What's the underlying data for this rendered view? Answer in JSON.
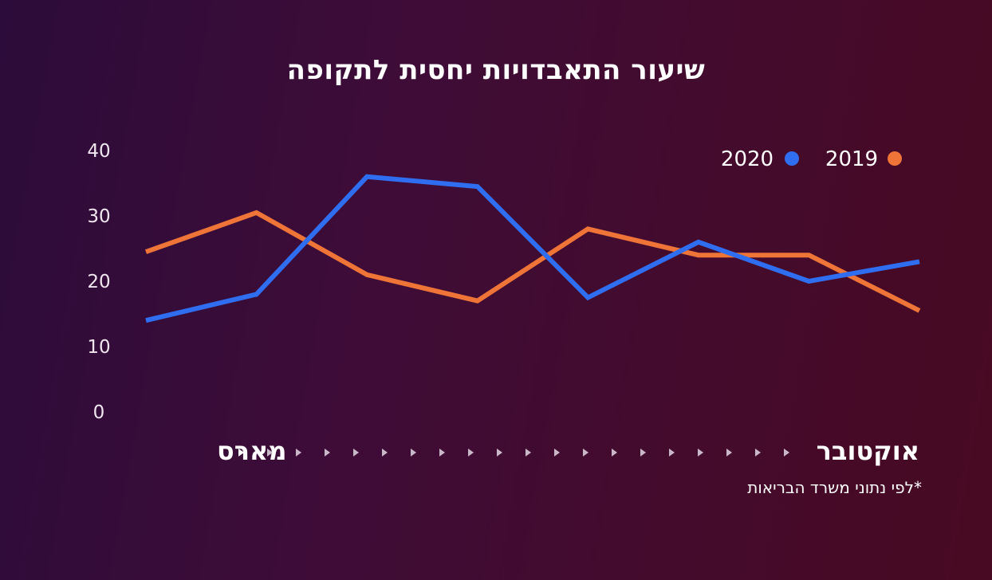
{
  "title": "שיעור התאבדויות יחסית לתקופה",
  "footnote": "*לפי נתוני משרד הבריאות",
  "chart_data": {
    "type": "line",
    "title": "שיעור התאבדויות יחסית לתקופה",
    "yticks": [
      0,
      10,
      20,
      30,
      40
    ],
    "ylim": [
      0,
      40
    ],
    "x_start_label": "מארס",
    "x_end_label": "אוקטובר",
    "x": [
      0,
      1,
      2,
      3,
      4,
      5,
      6,
      7
    ],
    "legend_position": "top-right",
    "grid": false,
    "series": [
      {
        "name": "2019",
        "color": "#ee7438",
        "values": [
          24.5,
          30.5,
          21,
          17,
          28,
          24,
          24,
          15.5
        ]
      },
      {
        "name": "2020",
        "color": "#2f6ef0",
        "values": [
          14,
          18,
          36,
          34.5,
          17.5,
          26,
          20,
          23
        ]
      }
    ]
  }
}
